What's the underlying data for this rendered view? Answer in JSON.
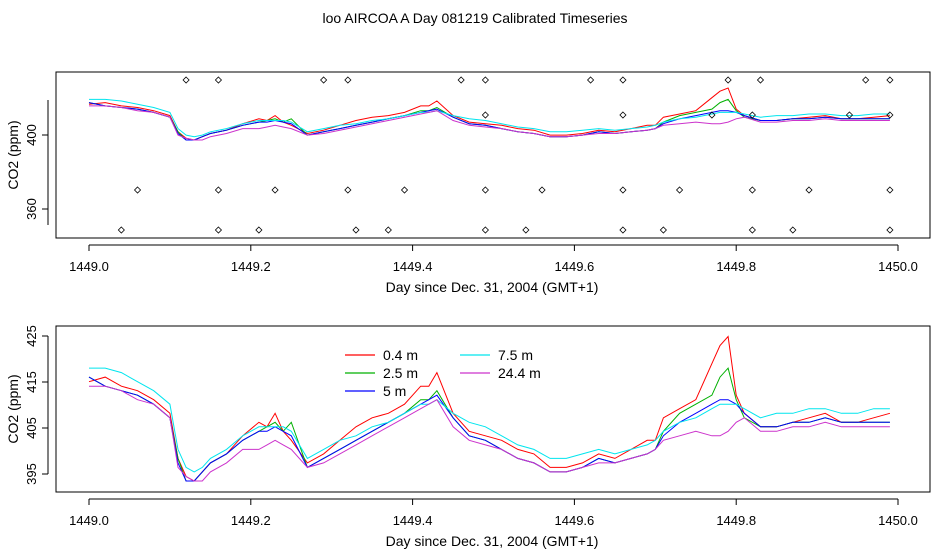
{
  "title": "loo AIRCOA A  Day 081219  Calibrated Timeseries",
  "chart_data": [
    {
      "type": "line",
      "xlabel": "Day since Dec. 31, 2004 (GMT+1)",
      "ylabel": "CO2 (ppm)",
      "xlim": [
        1449.0,
        1450.0
      ],
      "ylim": [
        345,
        420
      ],
      "x_ticks": [
        "1449.0",
        "1449.2",
        "1449.4",
        "1449.6",
        "1449.8",
        "1450.0"
      ],
      "y_ticks": [
        "360",
        "400"
      ],
      "x": [
        1449.0,
        1449.02,
        1449.04,
        1449.06,
        1449.08,
        1449.1,
        1449.11,
        1449.12,
        1449.13,
        1449.14,
        1449.15,
        1449.17,
        1449.19,
        1449.21,
        1449.22,
        1449.23,
        1449.24,
        1449.25,
        1449.27,
        1449.29,
        1449.31,
        1449.33,
        1449.35,
        1449.37,
        1449.39,
        1449.41,
        1449.42,
        1449.43,
        1449.45,
        1449.47,
        1449.49,
        1449.51,
        1449.53,
        1449.55,
        1449.57,
        1449.59,
        1449.61,
        1449.63,
        1449.65,
        1449.67,
        1449.69,
        1449.7,
        1449.71,
        1449.73,
        1449.75,
        1449.77,
        1449.78,
        1449.79,
        1449.8,
        1449.81,
        1449.83,
        1449.85,
        1449.87,
        1449.89,
        1449.91,
        1449.93,
        1449.95,
        1449.97,
        1449.99
      ],
      "series": [
        {
          "name": "0.4 m",
          "color": "#ff0000",
          "values": [
            415,
            416,
            414,
            413,
            411,
            408,
            398,
            394,
            393,
            395,
            397,
            399,
            403,
            406,
            405,
            408,
            404,
            402,
            397,
            399,
            402,
            405,
            407,
            408,
            410,
            414,
            414,
            417,
            408,
            404,
            403,
            402,
            400,
            399,
            396,
            396,
            397,
            399,
            398,
            400,
            402,
            402,
            407,
            409,
            411,
            419,
            423,
            425,
            412,
            408,
            405,
            405,
            406,
            407,
            408,
            406,
            406,
            407,
            408
          ]
        },
        {
          "name": "2.5 m",
          "color": "#00b000",
          "values": [
            416,
            414,
            413,
            412,
            410,
            407,
            398,
            393,
            393,
            395,
            397,
            399,
            402,
            404,
            405,
            406,
            404,
            406,
            396,
            398,
            400,
            402,
            404,
            406,
            408,
            411,
            411,
            413,
            407,
            403,
            402,
            400,
            398,
            397,
            395,
            395,
            396,
            398,
            397,
            398,
            399,
            400,
            404,
            408,
            410,
            412,
            416,
            418,
            411,
            407,
            405,
            405,
            406,
            406,
            407,
            406,
            406,
            406,
            406
          ]
        },
        {
          "name": "5 m",
          "color": "#0000ff",
          "values": [
            416,
            414,
            413,
            412,
            410,
            407,
            397,
            393,
            393,
            395,
            397,
            399,
            402,
            404,
            404,
            405,
            404,
            403,
            396,
            398,
            400,
            402,
            404,
            406,
            408,
            410,
            411,
            412,
            407,
            403,
            402,
            400,
            398,
            397,
            395,
            395,
            396,
            398,
            397,
            398,
            399,
            400,
            403,
            406,
            408,
            410,
            411,
            411,
            410,
            408,
            405,
            405,
            406,
            406,
            407,
            406,
            406,
            406,
            406
          ]
        },
        {
          "name": "7.5 m",
          "color": "#00e5ee",
          "values": [
            418,
            418,
            417,
            415,
            413,
            410,
            400,
            396,
            395,
            396,
            398,
            400,
            403,
            405,
            405,
            405,
            405,
            404,
            398,
            400,
            402,
            403,
            405,
            406,
            408,
            410,
            410,
            411,
            408,
            406,
            405,
            403,
            401,
            400,
            398,
            398,
            399,
            400,
            399,
            400,
            401,
            402,
            404,
            406,
            407,
            409,
            410,
            410,
            410,
            409,
            407,
            408,
            408,
            409,
            409,
            408,
            408,
            409,
            409
          ]
        },
        {
          "name": "24.4 m",
          "color": "#cc33cc",
          "values": [
            414,
            414,
            413,
            411,
            410,
            407,
            396,
            394,
            393,
            393,
            395,
            397,
            400,
            400,
            401,
            402,
            401,
            400,
            396,
            397,
            399,
            401,
            403,
            405,
            407,
            409,
            410,
            411,
            405,
            402,
            401,
            400,
            398,
            397,
            395,
            395,
            396,
            397,
            397,
            398,
            399,
            400,
            402,
            403,
            404,
            403,
            403,
            404,
            406,
            407,
            404,
            404,
            405,
            405,
            406,
            405,
            405,
            405,
            405
          ]
        }
      ],
      "sample_markers": {
        "row1_x": [
          1449.12,
          1449.16,
          1449.29,
          1449.32,
          1449.46,
          1449.49,
          1449.62,
          1449.66,
          1449.79,
          1449.83,
          1449.96,
          1449.99
        ],
        "row2_x": [
          1449.49,
          1449.66,
          1449.77,
          1449.82,
          1449.94,
          1449.99
        ],
        "row3_x": [
          1449.06,
          1449.16,
          1449.23,
          1449.32,
          1449.39,
          1449.49,
          1449.56,
          1449.66,
          1449.73,
          1449.82,
          1449.89,
          1449.99
        ],
        "row4_x": [
          1449.04,
          1449.16,
          1449.21,
          1449.33,
          1449.37,
          1449.49,
          1449.54,
          1449.66,
          1449.71,
          1449.82,
          1449.87,
          1449.99
        ]
      }
    },
    {
      "type": "line",
      "xlabel": "Day since Dec. 31, 2004 (GMT+1)",
      "ylabel": "CO2 (ppm)",
      "xlim": [
        1449.0,
        1450.0
      ],
      "ylim": [
        391,
        428
      ],
      "x_ticks": [
        "1449.0",
        "1449.2",
        "1449.4",
        "1449.6",
        "1449.8",
        "1450.0"
      ],
      "y_ticks": [
        "395",
        "405",
        "415",
        "425"
      ],
      "legend": "top-left",
      "series_ref": "same as panel 1"
    }
  ]
}
